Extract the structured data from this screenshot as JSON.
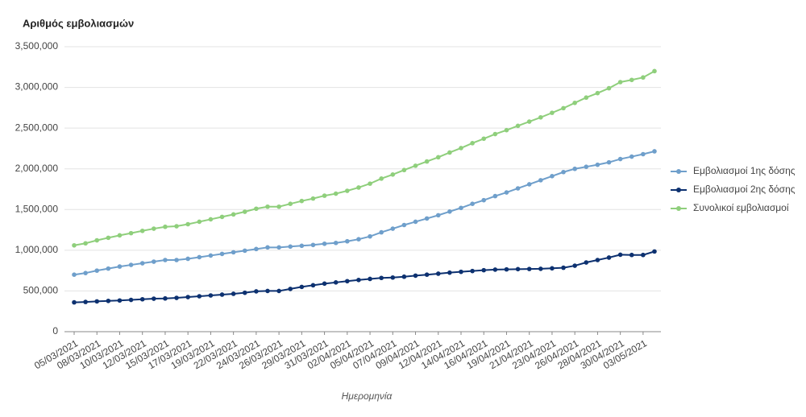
{
  "chart_data": {
    "type": "line",
    "y_title": "Αριθμός εμβολιασμών",
    "x_title": "Ημερομηνία",
    "categories": [
      "05/03/2021",
      null,
      "08/03/2021",
      null,
      "10/03/2021",
      null,
      "12/03/2021",
      null,
      "15/03/2021",
      null,
      "17/03/2021",
      null,
      "19/03/2021",
      null,
      "22/03/2021",
      null,
      "24/03/2021",
      null,
      "26/03/2021",
      null,
      "29/03/2021",
      null,
      "31/03/2021",
      null,
      "02/04/2021",
      null,
      "05/04/2021",
      null,
      "07/04/2021",
      null,
      "09/04/2021",
      null,
      "12/04/2021",
      null,
      "14/04/2021",
      null,
      "16/04/2021",
      null,
      "19/04/2021",
      null,
      "21/04/2021",
      null,
      "23/04/2021",
      null,
      "26/04/2021",
      null,
      "28/04/2021",
      null,
      "30/04/2021",
      null,
      "03/05/2021",
      null
    ],
    "series": [
      {
        "name": "Εμβολιασμοί 1ης δόσης",
        "color": "#6f9fcb",
        "values": [
          700000,
          720000,
          750000,
          775000,
          800000,
          820000,
          840000,
          860000,
          880000,
          880000,
          895000,
          915000,
          935000,
          955000,
          975000,
          995000,
          1015000,
          1035000,
          1035000,
          1045000,
          1055000,
          1065000,
          1080000,
          1090000,
          1110000,
          1135000,
          1170000,
          1220000,
          1265000,
          1310000,
          1350000,
          1390000,
          1430000,
          1475000,
          1520000,
          1570000,
          1615000,
          1665000,
          1710000,
          1760000,
          1810000,
          1860000,
          1910000,
          1960000,
          2000000,
          2025000,
          2050000,
          2080000,
          2120000,
          2150000,
          2180000,
          2215000
        ]
      },
      {
        "name": "Εμβολιασμοί 2ης δόσης",
        "color": "#0d3170",
        "values": [
          360000,
          365000,
          372000,
          378000,
          383000,
          390000,
          398000,
          405000,
          408000,
          415000,
          425000,
          435000,
          445000,
          455000,
          465000,
          478000,
          495000,
          500000,
          500000,
          525000,
          550000,
          570000,
          590000,
          605000,
          620000,
          635000,
          648000,
          660000,
          665000,
          675000,
          688000,
          700000,
          712000,
          725000,
          735000,
          745000,
          755000,
          762000,
          765000,
          768000,
          770000,
          772000,
          778000,
          785000,
          810000,
          850000,
          880000,
          910000,
          945000,
          942000,
          942000,
          985000
        ]
      },
      {
        "name": "Συνολικοί εμβολιασμοί",
        "color": "#8fcf7c",
        "values": [
          1060000,
          1085000,
          1122000,
          1153000,
          1183000,
          1210000,
          1238000,
          1265000,
          1288000,
          1295000,
          1320000,
          1350000,
          1380000,
          1410000,
          1440000,
          1473000,
          1510000,
          1535000,
          1535000,
          1570000,
          1605000,
          1635000,
          1670000,
          1695000,
          1730000,
          1770000,
          1818000,
          1880000,
          1930000,
          1985000,
          2038000,
          2090000,
          2142000,
          2200000,
          2255000,
          2315000,
          2370000,
          2427000,
          2475000,
          2528000,
          2580000,
          2632000,
          2688000,
          2745000,
          2810000,
          2875000,
          2930000,
          2990000,
          3065000,
          3092000,
          3122000,
          3200000
        ]
      }
    ],
    "ylim": [
      0,
      3500000
    ],
    "yticks": [
      0,
      {
        "value": 500000,
        "label": "500,000"
      },
      {
        "value": 1000000,
        "label": "1,000,000"
      },
      {
        "value": 1500000,
        "label": "1,500,000"
      },
      {
        "value": 2000000,
        "label": "2,000,000"
      },
      {
        "value": 2500000,
        "label": "2,500,000"
      },
      {
        "value": 3000000,
        "label": "3,000,000"
      },
      {
        "value": 3500000,
        "label": "3,500,000"
      }
    ],
    "grid": true,
    "legend": "right"
  }
}
